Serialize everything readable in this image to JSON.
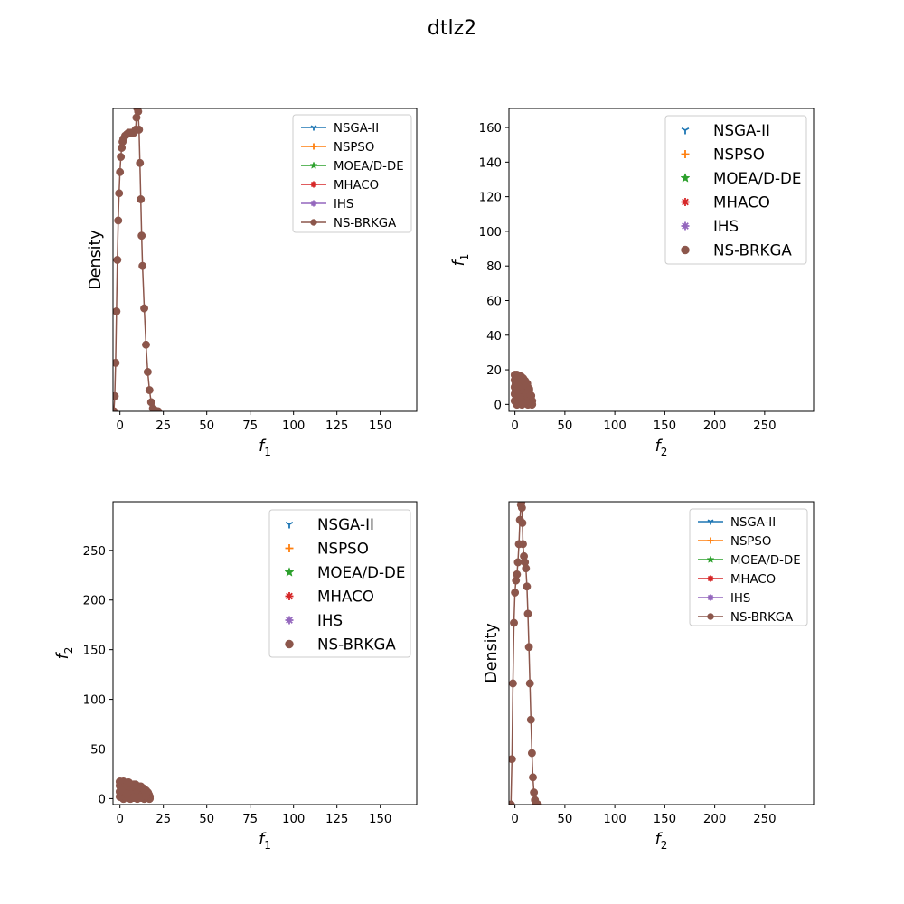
{
  "figure": {
    "title": "dtlz2",
    "legend_names": [
      "NSGA-II",
      "NSPSO",
      "MOEA/D-DE",
      "MHACO",
      "IHS",
      "NS-BRKGA"
    ]
  },
  "colors": {
    "NSGA-II": "#1f77b4",
    "NSPSO": "#ff7f0e",
    "MOEA/D-DE": "#2ca02c",
    "MHACO": "#d62728",
    "IHS": "#9467bd",
    "NS-BRKGA": "#8c564b"
  },
  "markers": {
    "NSGA-II": "tri-icon",
    "NSPSO": "plus-icon",
    "MOEA/D-DE": "star-icon",
    "MHACO": "asterisk-icon",
    "IHS": "asterisk-icon",
    "NS-BRKGA": "octagon-icon"
  },
  "chart_data": [
    {
      "type": "line",
      "panel": "top-left",
      "xlabel": "f1",
      "ylabel": "Density",
      "xlim": [
        -4,
        171
      ],
      "ylim": [
        0,
        1.0
      ],
      "xticks": [
        0,
        25,
        50,
        75,
        100,
        125,
        150
      ],
      "yticks": [],
      "legend_position": "upper right",
      "series": [
        {
          "name": "NSGA-II",
          "x": [],
          "y": []
        },
        {
          "name": "NSPSO",
          "x": [],
          "y": []
        },
        {
          "name": "MOEA/D-DE",
          "x": [],
          "y": []
        },
        {
          "name": "MHACO",
          "x": [],
          "y": []
        },
        {
          "name": "IHS",
          "x": [],
          "y": []
        },
        {
          "name": "NS-BRKGA",
          "x": [
            -3.5,
            -3.0,
            -2.5,
            -2.0,
            -1.5,
            -1.0,
            -0.5,
            0.0,
            0.5,
            1.0,
            1.5,
            2.0,
            3.0,
            4.0,
            5.0,
            6.0,
            7.0,
            8.0,
            9.0,
            9.5,
            10.0,
            10.5,
            11.0,
            11.5,
            12.0,
            12.5,
            13.0,
            14.0,
            15.0,
            16.0,
            17.0,
            18.0,
            19.0,
            20.0,
            21.0,
            22.0
          ],
          "y": [
            0.0,
            0.05,
            0.16,
            0.33,
            0.5,
            0.63,
            0.72,
            0.79,
            0.84,
            0.87,
            0.89,
            0.9,
            0.91,
            0.915,
            0.92,
            0.92,
            0.92,
            0.92,
            0.93,
            0.97,
            1.0,
            0.99,
            0.93,
            0.82,
            0.7,
            0.58,
            0.48,
            0.34,
            0.22,
            0.13,
            0.07,
            0.03,
            0.01,
            0.003,
            0.001,
            0.0
          ]
        }
      ]
    },
    {
      "type": "scatter",
      "panel": "top-right",
      "xlabel": "f2",
      "ylabel": "f1",
      "xlim": [
        -6,
        299
      ],
      "ylim": [
        -4,
        171
      ],
      "xticks": [
        0,
        50,
        100,
        150,
        200,
        250
      ],
      "yticks": [
        0,
        20,
        40,
        60,
        80,
        100,
        120,
        140,
        160
      ],
      "legend_position": "upper right",
      "series": [
        {
          "name": "NSGA-II",
          "x": [],
          "y": []
        },
        {
          "name": "NSPSO",
          "x": [],
          "y": []
        },
        {
          "name": "MOEA/D-DE",
          "x": [],
          "y": []
        },
        {
          "name": "MHACO",
          "x": [],
          "y": []
        },
        {
          "name": "IHS",
          "x": [],
          "y": []
        },
        {
          "name": "NS-BRKGA",
          "x": [
            0,
            2,
            4,
            6,
            8,
            10,
            12,
            14,
            16,
            0,
            3,
            6,
            9,
            12,
            15,
            0,
            4,
            8,
            12,
            0,
            5,
            10,
            0,
            5,
            10,
            15,
            2,
            7,
            13,
            1,
            1,
            3,
            6,
            9,
            12,
            14,
            16,
            17,
            17,
            11,
            8,
            5
          ],
          "y": [
            17,
            17,
            16.5,
            16,
            15,
            13.5,
            12,
            9,
            5,
            14,
            14,
            13,
            11.5,
            9,
            4,
            10,
            10,
            9,
            7,
            6,
            6,
            5,
            2,
            2,
            2,
            1,
            0,
            0,
            0,
            8,
            12,
            15,
            15,
            14,
            11,
            8,
            5,
            2,
            0,
            2,
            1,
            4
          ]
        }
      ]
    },
    {
      "type": "scatter",
      "panel": "bottom-left",
      "xlabel": "f1",
      "ylabel": "f2",
      "xlim": [
        -4,
        171
      ],
      "ylim": [
        -6,
        299
      ],
      "xticks": [
        0,
        25,
        50,
        75,
        100,
        125,
        150
      ],
      "yticks": [
        0,
        50,
        100,
        150,
        200,
        250
      ],
      "legend_position": "upper right",
      "series": [
        {
          "name": "NSGA-II",
          "x": [],
          "y": []
        },
        {
          "name": "NSPSO",
          "x": [],
          "y": []
        },
        {
          "name": "MOEA/D-DE",
          "x": [],
          "y": []
        },
        {
          "name": "MHACO",
          "x": [],
          "y": []
        },
        {
          "name": "IHS",
          "x": [],
          "y": []
        },
        {
          "name": "NS-BRKGA",
          "x": [
            17,
            17,
            16.5,
            16,
            15,
            13.5,
            12,
            9,
            5,
            14,
            14,
            13,
            11.5,
            9,
            4,
            10,
            10,
            9,
            7,
            6,
            6,
            5,
            2,
            2,
            2,
            1,
            0,
            0,
            0,
            8,
            12,
            15,
            15,
            14,
            11,
            8,
            5,
            2,
            0,
            2,
            1,
            4
          ],
          "y": [
            0,
            2,
            4,
            6,
            8,
            10,
            12,
            14,
            16,
            0,
            3,
            6,
            9,
            12,
            15,
            0,
            4,
            8,
            12,
            0,
            5,
            10,
            0,
            5,
            10,
            15,
            2,
            7,
            13,
            1,
            1,
            3,
            6,
            9,
            12,
            14,
            16,
            17,
            17,
            11,
            8,
            5
          ]
        }
      ]
    },
    {
      "type": "line",
      "panel": "bottom-right",
      "xlabel": "f2",
      "ylabel": "Density",
      "xlim": [
        -6,
        299
      ],
      "ylim": [
        0,
        1.0
      ],
      "xticks": [
        0,
        50,
        100,
        150,
        200,
        250
      ],
      "yticks": [],
      "legend_position": "upper right",
      "series": [
        {
          "name": "NSGA-II",
          "x": [],
          "y": []
        },
        {
          "name": "NSPSO",
          "x": [],
          "y": []
        },
        {
          "name": "MOEA/D-DE",
          "x": [],
          "y": []
        },
        {
          "name": "MHACO",
          "x": [],
          "y": []
        },
        {
          "name": "IHS",
          "x": [],
          "y": []
        },
        {
          "name": "NS-BRKGA",
          "x": [
            -4,
            -3,
            -2,
            -1,
            0,
            1,
            2,
            3,
            4,
            5,
            6,
            6.5,
            7,
            7.5,
            8,
            9,
            10,
            11,
            12,
            13,
            14,
            15,
            16,
            17,
            18,
            19,
            20,
            21,
            22,
            23
          ],
          "y": [
            0.0,
            0.15,
            0.4,
            0.6,
            0.7,
            0.74,
            0.76,
            0.8,
            0.86,
            0.94,
            0.99,
            1.0,
            0.98,
            0.93,
            0.86,
            0.82,
            0.8,
            0.78,
            0.72,
            0.63,
            0.52,
            0.4,
            0.28,
            0.17,
            0.09,
            0.04,
            0.015,
            0.005,
            0.001,
            0.0
          ]
        }
      ]
    }
  ]
}
